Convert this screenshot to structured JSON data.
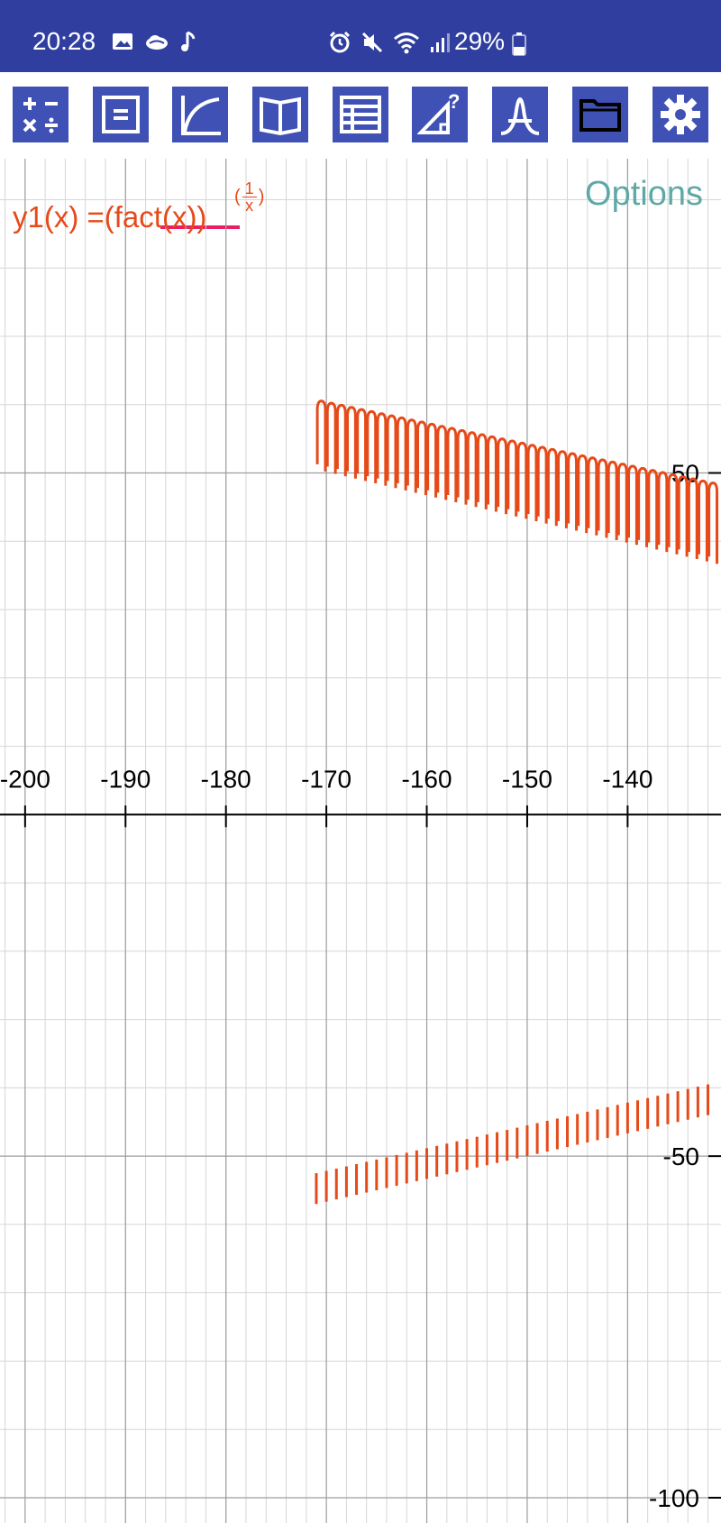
{
  "status_bar": {
    "time": "20:28",
    "battery_percent": "29%",
    "left_icons": [
      "gallery-icon",
      "cloud-icon",
      "music-note-icon"
    ],
    "right_icons": [
      "alarm-icon",
      "mute-icon",
      "wifi-icon",
      "signal-icon"
    ],
    "background_color": "#303f9f"
  },
  "toolbar": {
    "buttons": [
      {
        "name": "calculator-icon",
        "active": false
      },
      {
        "name": "equation-icon",
        "active": false
      },
      {
        "name": "graph-icon",
        "active": true
      },
      {
        "name": "book-icon",
        "active": false
      },
      {
        "name": "table-icon",
        "active": false
      },
      {
        "name": "geometry-icon",
        "active": false
      },
      {
        "name": "distribution-icon",
        "active": false
      },
      {
        "name": "folder-icon",
        "active": false
      },
      {
        "name": "settings-icon",
        "active": false
      }
    ],
    "button_color": "#3f51b5",
    "active_underline_color": "#e91e63"
  },
  "graph": {
    "formula": {
      "prefix": "y1(x) =(fact(x))",
      "exponent_open": "(",
      "exponent_numerator": "1",
      "exponent_denominator": "x",
      "exponent_close": ")"
    },
    "options_label": "Options",
    "curve_color": "#e64a19"
  },
  "chart_data": {
    "type": "line",
    "function": "y1(x) =(fact(x))^(1/x)",
    "xlim": [
      -202.5,
      -130.7
    ],
    "ylim": [
      -103.7,
      96
    ],
    "x_ticks": [
      -200,
      -190,
      -180,
      -170,
      -160,
      -150,
      -140
    ],
    "x_tick_labels": [
      "-200",
      "-190",
      "-180",
      "-170",
      "-160",
      "-150",
      "-140"
    ],
    "y_ticks": [
      50,
      -50,
      -100
    ],
    "y_tick_labels": [
      "50",
      "-50",
      "-100"
    ],
    "grid": true,
    "series": [
      {
        "name": "y1",
        "upper_branch": {
          "x_start": -171,
          "x_end": -131,
          "arc_top_start": 60,
          "arc_top_end": 48,
          "bar_bottom_start": 51,
          "bar_bottom_end": 37.5
        },
        "lower_branch": {
          "x_start": -171,
          "x_end": -131,
          "bar_top_start": -52.5,
          "bar_top_end": -39.5,
          "bar_bottom_start": -57,
          "bar_bottom_end": -44
        }
      }
    ]
  }
}
